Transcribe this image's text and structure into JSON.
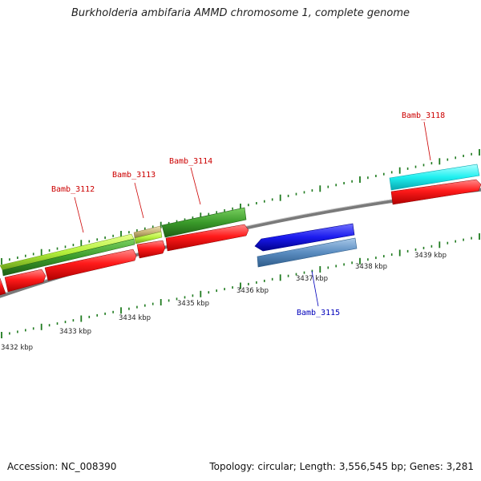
{
  "title": "Burkholderia ambifaria AMMD chromosome 1, complete genome",
  "accession": "Accession: NC_008390",
  "summary": "Topology: circular; Length: 3,556,545 bp; Genes: 3,281",
  "ticks": [
    "3432 kbp",
    "3433 kbp",
    "3434 kbp",
    "3435 kbp",
    "3436 kbp",
    "3437 kbp",
    "3438 kbp",
    "3439 kbp"
  ],
  "genes": {
    "bamb_3112": "Bamb_3112",
    "bamb_3113": "Bamb_3113",
    "bamb_3114": "Bamb_3114",
    "bamb_3115": "Bamb_3115",
    "bamb_3118": "Bamb_3118"
  },
  "colors": {
    "backbone": "#808080",
    "tick": "#1e7a1e",
    "cds": "#ff1a1a",
    "gene_label_forward": "#cc0000",
    "gene_label_reverse": "#0000bb",
    "light_green": "#b4f03c",
    "green": "#3a9a2a",
    "tan": "#c8b478",
    "blue": "#1a1aee",
    "steel_blue": "#5a8cc0",
    "cyan": "#20f0f0"
  }
}
